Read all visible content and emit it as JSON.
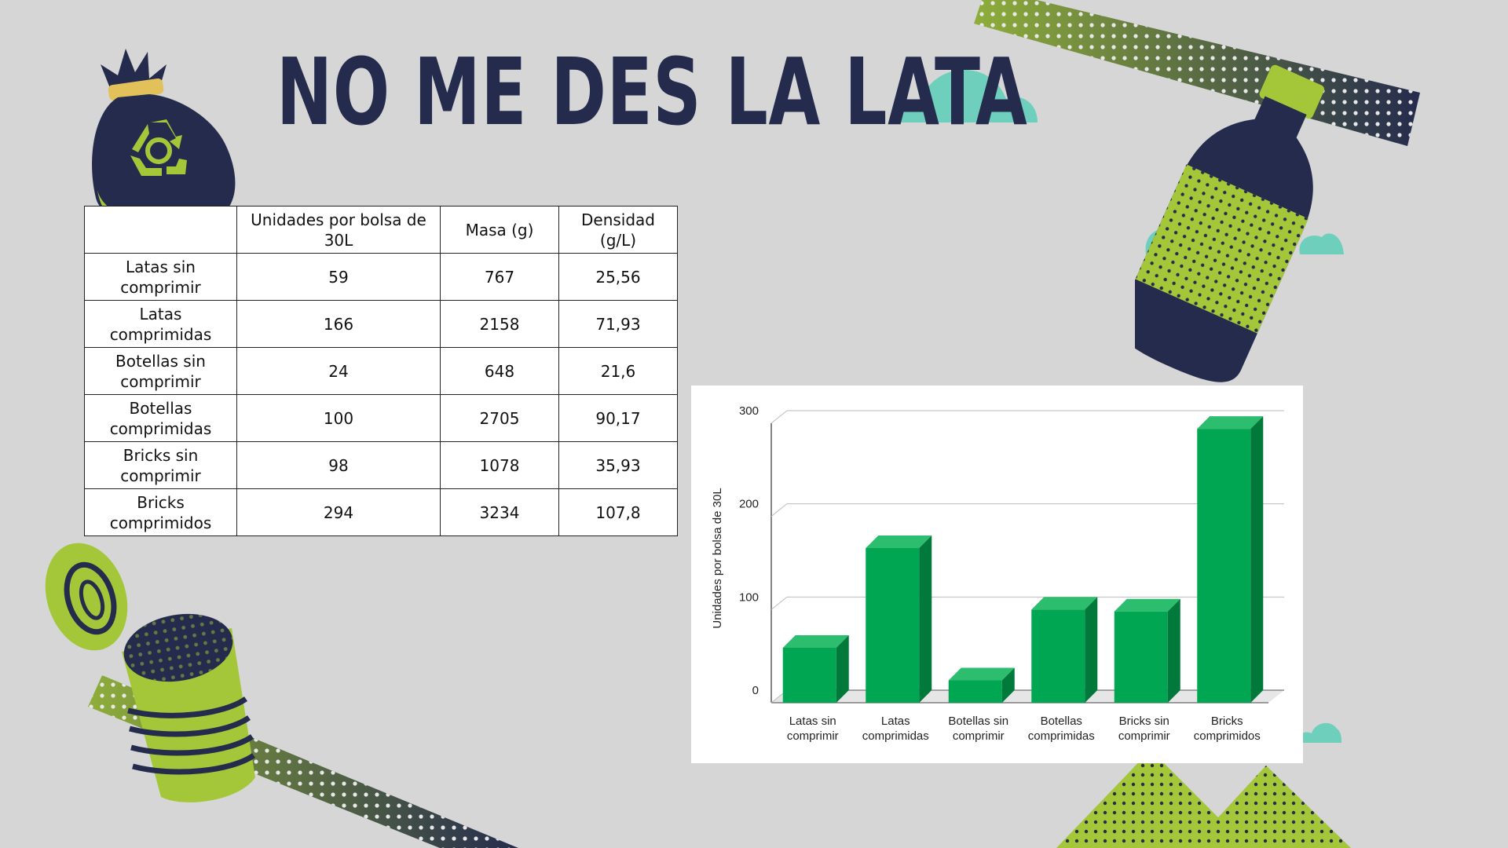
{
  "title": "NO ME DES LA LATA",
  "colors": {
    "background": "#d6d6d6",
    "navy": "#252b4d",
    "lime": "#a4c639",
    "teal": "#6ecfbd",
    "bar_front": "#00a651",
    "bar_top": "#2dbd6e",
    "bar_side": "#00793b"
  },
  "table": {
    "headers": [
      "",
      "Unidades por bolsa de 30L",
      "Masa (g)",
      "Densidad (g/L)"
    ],
    "rows": [
      {
        "label": "Latas sin comprimir",
        "unidades": "59",
        "masa": "767",
        "densidad": "25,56"
      },
      {
        "label": "Latas comprimidas",
        "unidades": "166",
        "masa": "2158",
        "densidad": "71,93"
      },
      {
        "label": "Botellas sin comprimir",
        "unidades": "24",
        "masa": "648",
        "densidad": "21,6"
      },
      {
        "label": "Botellas comprimidas",
        "unidades": "100",
        "masa": "2705",
        "densidad": "90,17"
      },
      {
        "label": "Bricks sin comprimir",
        "unidades": "98",
        "masa": "1078",
        "densidad": "35,93"
      },
      {
        "label": "Bricks comprimidos",
        "unidades": "294",
        "masa": "3234",
        "densidad": "107,8"
      }
    ]
  },
  "chart_data": {
    "type": "bar",
    "style": "3d",
    "categories": [
      [
        "Latas sin",
        "comprimir"
      ],
      [
        "Latas",
        "comprimidas"
      ],
      [
        "Botellas sin",
        "comprimir"
      ],
      [
        "Botellas",
        "comprimidas"
      ],
      [
        "Bricks sin",
        "comprimir"
      ],
      [
        "Bricks",
        "comprimidos"
      ]
    ],
    "values": [
      59,
      166,
      24,
      100,
      98,
      294
    ],
    "ylabel": "Unidades por bolsa de 30L",
    "xlabel": "",
    "ylim": [
      0,
      300
    ],
    "yticks": [
      0,
      100,
      200,
      300
    ],
    "grid": true,
    "legend": "none"
  },
  "icons": [
    "recycle-bag-icon",
    "bottle-icon",
    "can-icon",
    "cloud-icon"
  ]
}
